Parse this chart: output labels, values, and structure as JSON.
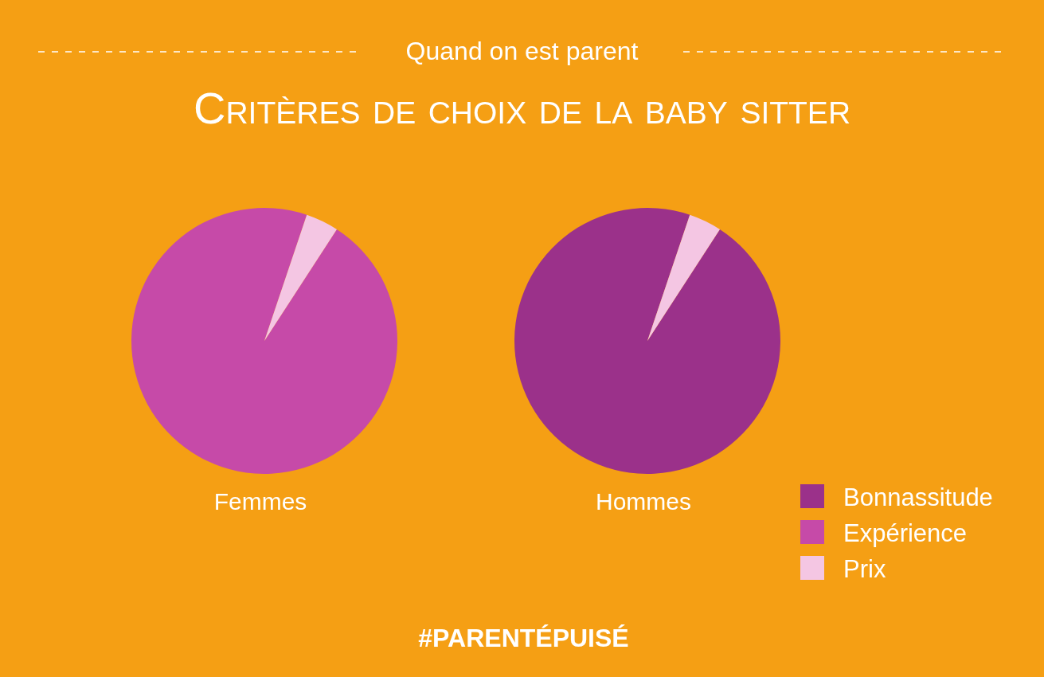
{
  "chart_data": {
    "type": "pie",
    "title": "Critères de choix de la baby sitter",
    "subtitle": "Quand on est parent",
    "categories": [
      "Bonnassitude",
      "Expérience",
      "Prix"
    ],
    "colors": [
      "#9b318a",
      "#c64aa8",
      "#f4c6e3"
    ],
    "series": [
      {
        "name": "Femmes",
        "values": [
          0,
          96,
          4
        ]
      },
      {
        "name": "Hommes",
        "values": [
          96,
          0,
          4
        ]
      }
    ],
    "legend": "right",
    "annotations": [
      "#PARENTÉPUISÉ"
    ]
  }
}
